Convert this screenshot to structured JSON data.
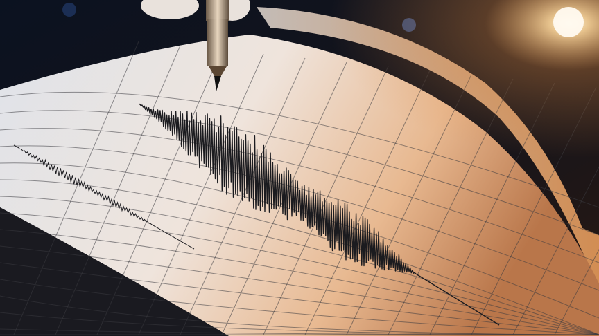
{
  "scene": {
    "subject": "seismograph",
    "icons": [
      "pen-icon",
      "light-flare-icon"
    ],
    "colors": {
      "background": "#0d0f14",
      "paper_light": "#f1e6dc",
      "paper_warm": "#e9b58c",
      "ink": "#1b1b1f",
      "flare": "#fff4d6"
    }
  }
}
